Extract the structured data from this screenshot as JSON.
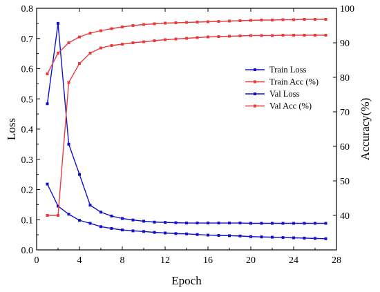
{
  "chart_data": {
    "type": "line",
    "title": "",
    "xlabel": "Epoch",
    "ylabel_left": "Loss",
    "ylabel_right": "Accuracy(%)",
    "xlim": [
      0,
      28
    ],
    "xticks": [
      0,
      4,
      8,
      12,
      16,
      20,
      24,
      28
    ],
    "xtick_labels": [
      "0",
      "4",
      "8",
      "12",
      "16",
      "20",
      "24",
      "28"
    ],
    "ylim_left": [
      0.0,
      0.8
    ],
    "yticks_left": [
      0.0,
      0.1,
      0.2,
      0.3,
      0.4,
      0.5,
      0.6,
      0.7,
      0.8
    ],
    "ytick_labels_left": [
      "0.0",
      "0.1",
      "0.2",
      "0.3",
      "0.4",
      "0.5",
      "0.6",
      "0.7",
      "0.8"
    ],
    "ylim_right": [
      30,
      100
    ],
    "yticks_right": [
      40,
      50,
      60,
      70,
      80,
      90,
      100
    ],
    "ytick_labels_right": [
      "40",
      "50",
      "60",
      "70",
      "80",
      "90",
      "100"
    ],
    "grid": false,
    "legend_position": "center-right",
    "x": [
      1,
      2,
      3,
      4,
      5,
      6,
      7,
      8,
      9,
      10,
      11,
      12,
      13,
      14,
      15,
      16,
      17,
      18,
      19,
      20,
      21,
      22,
      23,
      24,
      25,
      26,
      27
    ],
    "series": [
      {
        "name": "Train Loss",
        "axis": "left",
        "color": "#1010c8",
        "values": [
          0.484,
          0.75,
          0.35,
          0.25,
          0.148,
          0.125,
          0.112,
          0.104,
          0.099,
          0.095,
          0.092,
          0.091,
          0.09,
          0.089,
          0.089,
          0.089,
          0.089,
          0.089,
          0.089,
          0.088,
          0.088,
          0.088,
          0.088,
          0.088,
          0.088,
          0.088,
          0.088
        ]
      },
      {
        "name": "Train Acc (%)",
        "axis": "right",
        "color": "#e83c3c",
        "values": [
          81.0,
          87.0,
          90.0,
          91.7,
          92.8,
          93.5,
          94.1,
          94.6,
          95.0,
          95.3,
          95.5,
          95.7,
          95.8,
          95.9,
          96.0,
          96.1,
          96.2,
          96.3,
          96.4,
          96.5,
          96.6,
          96.6,
          96.7,
          96.7,
          96.8,
          96.8,
          96.8
        ]
      },
      {
        "name": "Val Loss",
        "axis": "left",
        "color": "#1010c8",
        "values": [
          0.218,
          0.145,
          0.118,
          0.098,
          0.088,
          0.077,
          0.071,
          0.066,
          0.063,
          0.061,
          0.058,
          0.056,
          0.054,
          0.053,
          0.051,
          0.049,
          0.048,
          0.047,
          0.046,
          0.044,
          0.043,
          0.042,
          0.041,
          0.04,
          0.039,
          0.038,
          0.037
        ]
      },
      {
        "name": "Val Acc (%)",
        "axis": "right",
        "color": "#e83c3c",
        "values": [
          40.0,
          40.0,
          78.5,
          84.0,
          87.0,
          88.5,
          89.2,
          89.6,
          90.0,
          90.3,
          90.6,
          90.9,
          91.1,
          91.3,
          91.5,
          91.7,
          91.8,
          91.9,
          92.0,
          92.1,
          92.1,
          92.1,
          92.2,
          92.2,
          92.2,
          92.2,
          92.2
        ]
      }
    ]
  }
}
